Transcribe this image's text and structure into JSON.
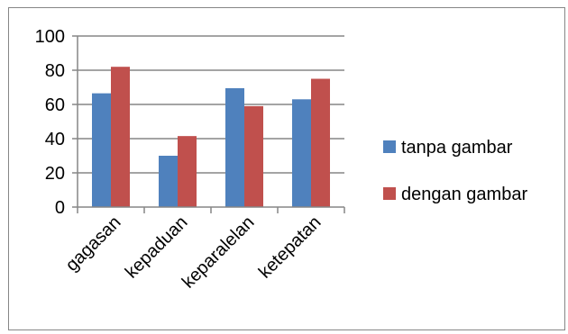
{
  "chart_data": {
    "type": "bar",
    "categories": [
      "gagasan",
      "kepaduan",
      "keparalelan",
      "ketepatan"
    ],
    "series": [
      {
        "name": "tanpa gambar",
        "values": [
          66.5,
          30,
          69.5,
          63
        ],
        "color": "#4F81BD"
      },
      {
        "name": "dengan gambar",
        "values": [
          82,
          41.5,
          59,
          75
        ],
        "color": "#C0504D"
      }
    ],
    "ylim": [
      0,
      100
    ],
    "yticks": [
      0,
      20,
      40,
      60,
      80,
      100
    ],
    "grid": true,
    "legend": "right"
  }
}
